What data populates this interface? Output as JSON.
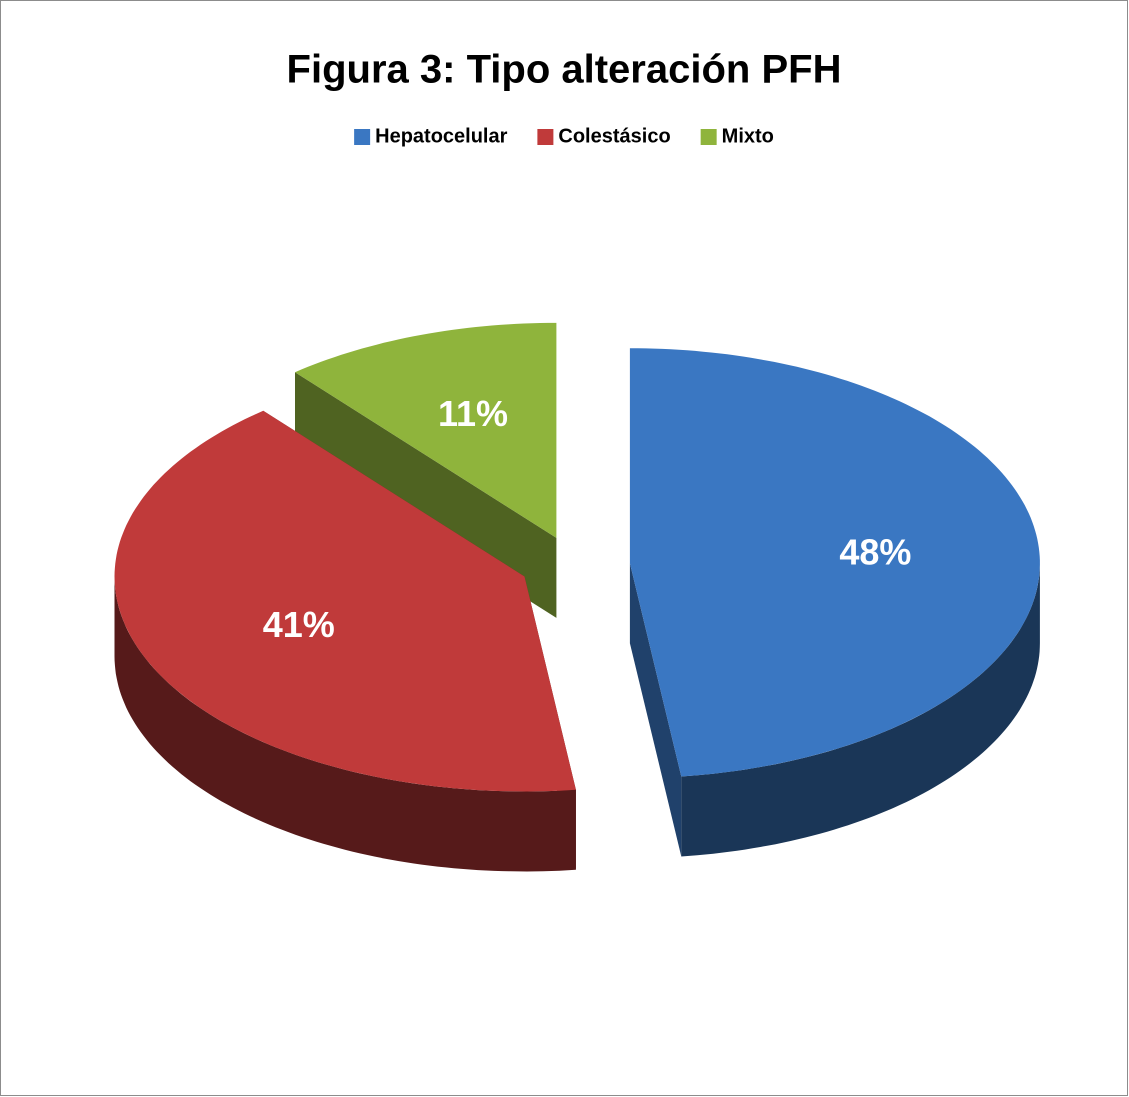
{
  "chart_data": {
    "type": "pie",
    "title": "Figura 3: Tipo alteración PFH",
    "categories": [
      "Hepatocelular",
      "Colestásico",
      "Mixto"
    ],
    "values": [
      48,
      41,
      11
    ],
    "value_labels": [
      "48%",
      "41%",
      "11%"
    ],
    "colors": [
      "#3a77c2",
      "#c03a3a",
      "#8fb43c"
    ],
    "legend": "top",
    "exploded": true,
    "three_d": true
  }
}
